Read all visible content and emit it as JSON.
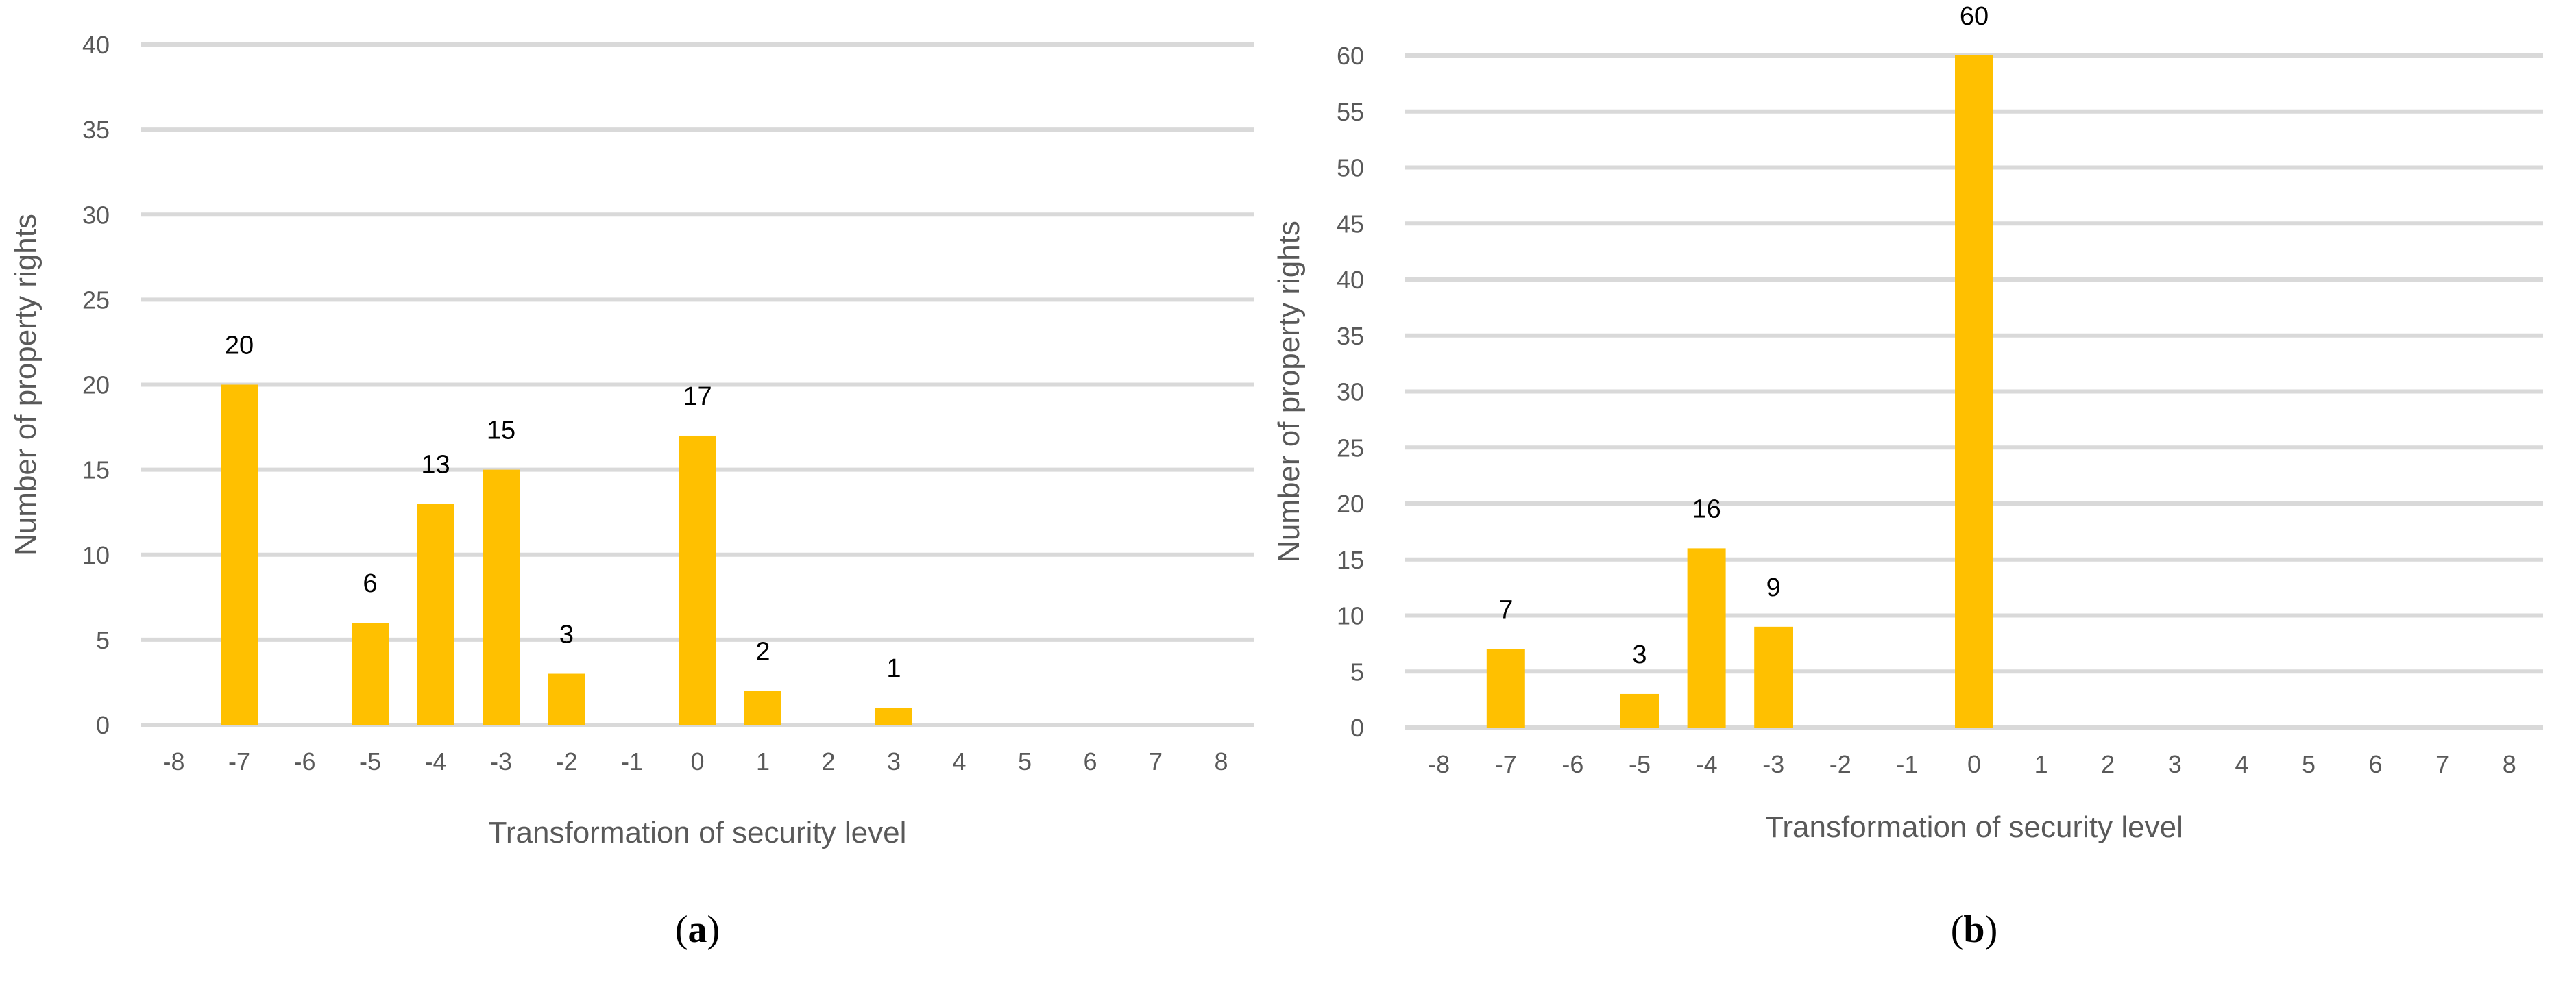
{
  "chart_data": [
    {
      "type": "bar",
      "panel_label": "(a)",
      "panel_letter": "a",
      "xlabel": "Transformation of security level",
      "ylabel": "Number of property rights",
      "categories": [
        -8,
        -7,
        -6,
        -5,
        -4,
        -3,
        -2,
        -1,
        0,
        1,
        2,
        3,
        4,
        5,
        6,
        7,
        8
      ],
      "values": [
        0,
        20,
        0,
        6,
        13,
        15,
        3,
        0,
        17,
        2,
        0,
        1,
        0,
        0,
        0,
        0,
        0
      ],
      "data_labels": [
        "",
        "20",
        "",
        "6",
        "13",
        "15",
        "3",
        "",
        "17",
        "2",
        "",
        "1",
        "",
        "",
        "",
        "",
        ""
      ],
      "ylim": [
        0,
        40
      ],
      "yticks": [
        0,
        5,
        10,
        15,
        20,
        25,
        30,
        35,
        40
      ],
      "grid": true,
      "bar_color": "#FFC000",
      "grid_color": "#D9D9D9"
    },
    {
      "type": "bar",
      "panel_label": "(b)",
      "panel_letter": "b",
      "xlabel": "Transformation of security level",
      "ylabel": "Number of property rights",
      "categories": [
        -8,
        -7,
        -6,
        -5,
        -4,
        -3,
        -2,
        -1,
        0,
        1,
        2,
        3,
        4,
        5,
        6,
        7,
        8
      ],
      "values": [
        0,
        7,
        0,
        3,
        16,
        9,
        0,
        0,
        60,
        0,
        0,
        0,
        0,
        0,
        0,
        0,
        0
      ],
      "data_labels": [
        "",
        "7",
        "",
        "3",
        "16",
        "9",
        "",
        "",
        "60",
        "",
        "",
        "",
        "",
        "",
        "",
        "",
        ""
      ],
      "ylim": [
        0,
        60
      ],
      "yticks": [
        0,
        5,
        10,
        15,
        20,
        25,
        30,
        35,
        40,
        45,
        50,
        55,
        60
      ],
      "grid": true,
      "bar_color": "#FFC000",
      "grid_color": "#D9D9D9"
    }
  ]
}
